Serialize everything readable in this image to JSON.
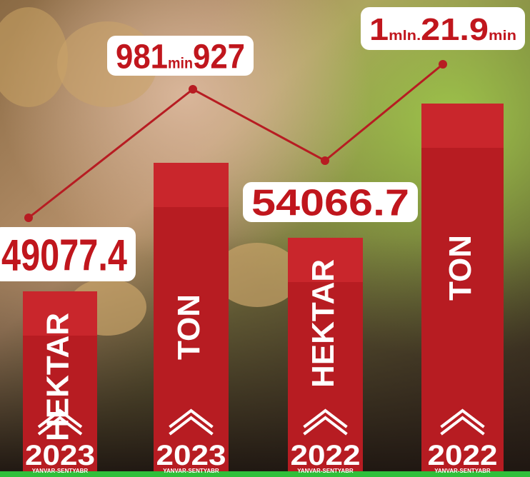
{
  "items": [
    {
      "value": [
        "49077.4"
      ],
      "unit": "HEKTAR",
      "year": "2023",
      "period": "YANVAR-SENTYABR"
    },
    {
      "value": [
        "981",
        "min",
        "927"
      ],
      "unit": "TON",
      "year": "2023",
      "period": "YANVAR-SENTYABR"
    },
    {
      "value": [
        "54066.7"
      ],
      "unit": "HEKTAR",
      "year": "2022",
      "period": "YANVAR-SENTYABR"
    },
    {
      "value": [
        "1",
        "mln.",
        "21.9",
        "min"
      ],
      "unit": "TON",
      "year": "2022",
      "period": "YANVAR-SENTYABR"
    }
  ]
}
